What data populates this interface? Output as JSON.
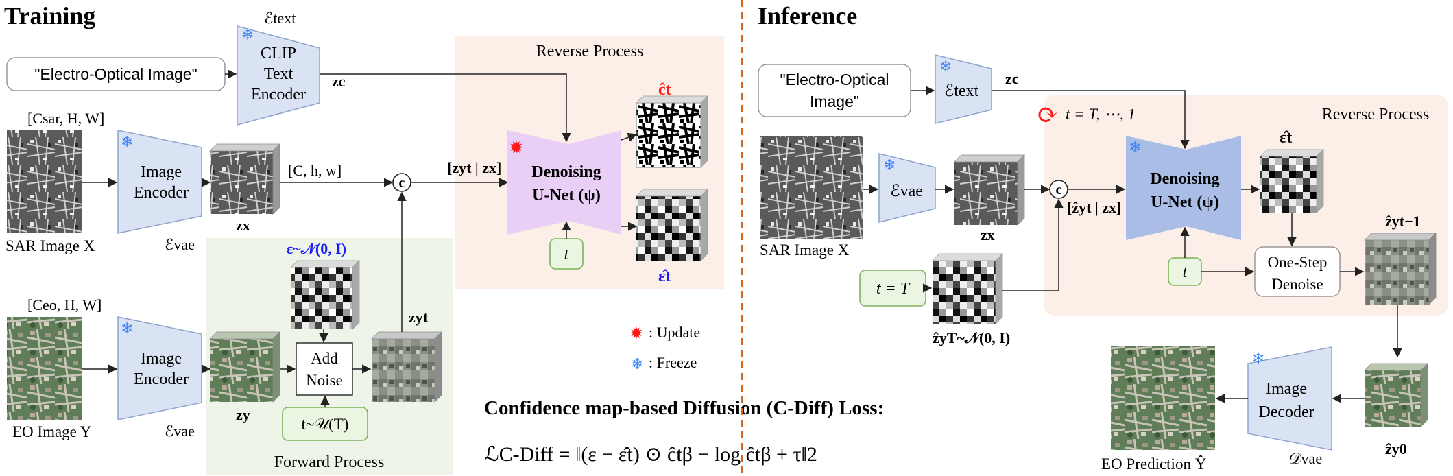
{
  "training": {
    "title": "Training",
    "prompt": "\"Electro-Optical Image\"",
    "clip": {
      "line1": "CLIP",
      "line2": "Text",
      "line3": "Encoder",
      "label": "ℰtext"
    },
    "zc": "zc",
    "reverse_process": "Reverse Process",
    "forward_process": "Forward Process",
    "sar_dims": "[Csar, H, W]",
    "eo_dims": "[Ceo, H, W]",
    "sar_caption": "SAR Image X",
    "eo_caption": "EO Image Y",
    "image_encoder": {
      "line1": "Image",
      "line2": "Encoder",
      "label": "ℰvae"
    },
    "zx": "zx",
    "zy": "zy",
    "zyt": "zyt",
    "latent_dims": "[C, h, w]",
    "concat": "c",
    "concat_label": "[zyt | zx]",
    "unet": {
      "line1": "Denoising",
      "line2": "U-Net (ψ)"
    },
    "t": "t",
    "c_hat": "ĉt",
    "eps_hat": "ε̂t",
    "noise_dist": "ε~𝒩(0, I)",
    "add_noise": {
      "line1": "Add",
      "line2": "Noise"
    },
    "t_dist": "t~𝒰(T)"
  },
  "legend": {
    "update": ": Update",
    "freeze": ": Freeze"
  },
  "loss": {
    "title": "Confidence map-based Diffusion (C-Diff) Loss:",
    "formula": "ℒC-Diff = ‖(ε − ε̂t) ⊙ ĉtβ − log ĉtβ + τ‖2"
  },
  "inference": {
    "title": "Inference",
    "prompt_line1": "\"Electro-Optical",
    "prompt_line2": "Image\"",
    "text_encoder_label": "ℰtext",
    "zc": "zc",
    "loop": "t = T, ⋯, 1",
    "reverse_process": "Reverse Process",
    "sar_caption": "SAR Image X",
    "vae_label": "ℰvae",
    "zx": "zx",
    "concat": "c",
    "concat_label": "[ẑyt | zx]",
    "unet": {
      "line1": "Denoising",
      "line2": "U-Net (ψ)"
    },
    "eps_hat": "ε̂t",
    "t_eq_T": "t = T",
    "zyT": "ẑyT~𝒩(0, I)",
    "t": "t",
    "one_step": {
      "line1": "One-Step",
      "line2": "Denoise"
    },
    "zy_t1": "ẑyt−1",
    "zy0": "ẑy0",
    "image_decoder": {
      "line1": "Image",
      "line2": "Decoder",
      "label": "𝒟vae"
    },
    "eo_prediction": "EO Prediction Ŷ"
  },
  "colors": {
    "encoder_fill": "#dae3f3",
    "encoder_stroke": "#8fa6cc",
    "unet_train": "#e9cff6",
    "unet_infer": "#a9bde6",
    "forward_bg": "#eef5e8",
    "reverse_bg": "#fcefe8",
    "green_box": "#eaf5e2",
    "green_stroke": "#7fb25a",
    "blue_text": "#1a1aff",
    "red_text": "#ff1a1a",
    "divider": "#d2691e"
  }
}
